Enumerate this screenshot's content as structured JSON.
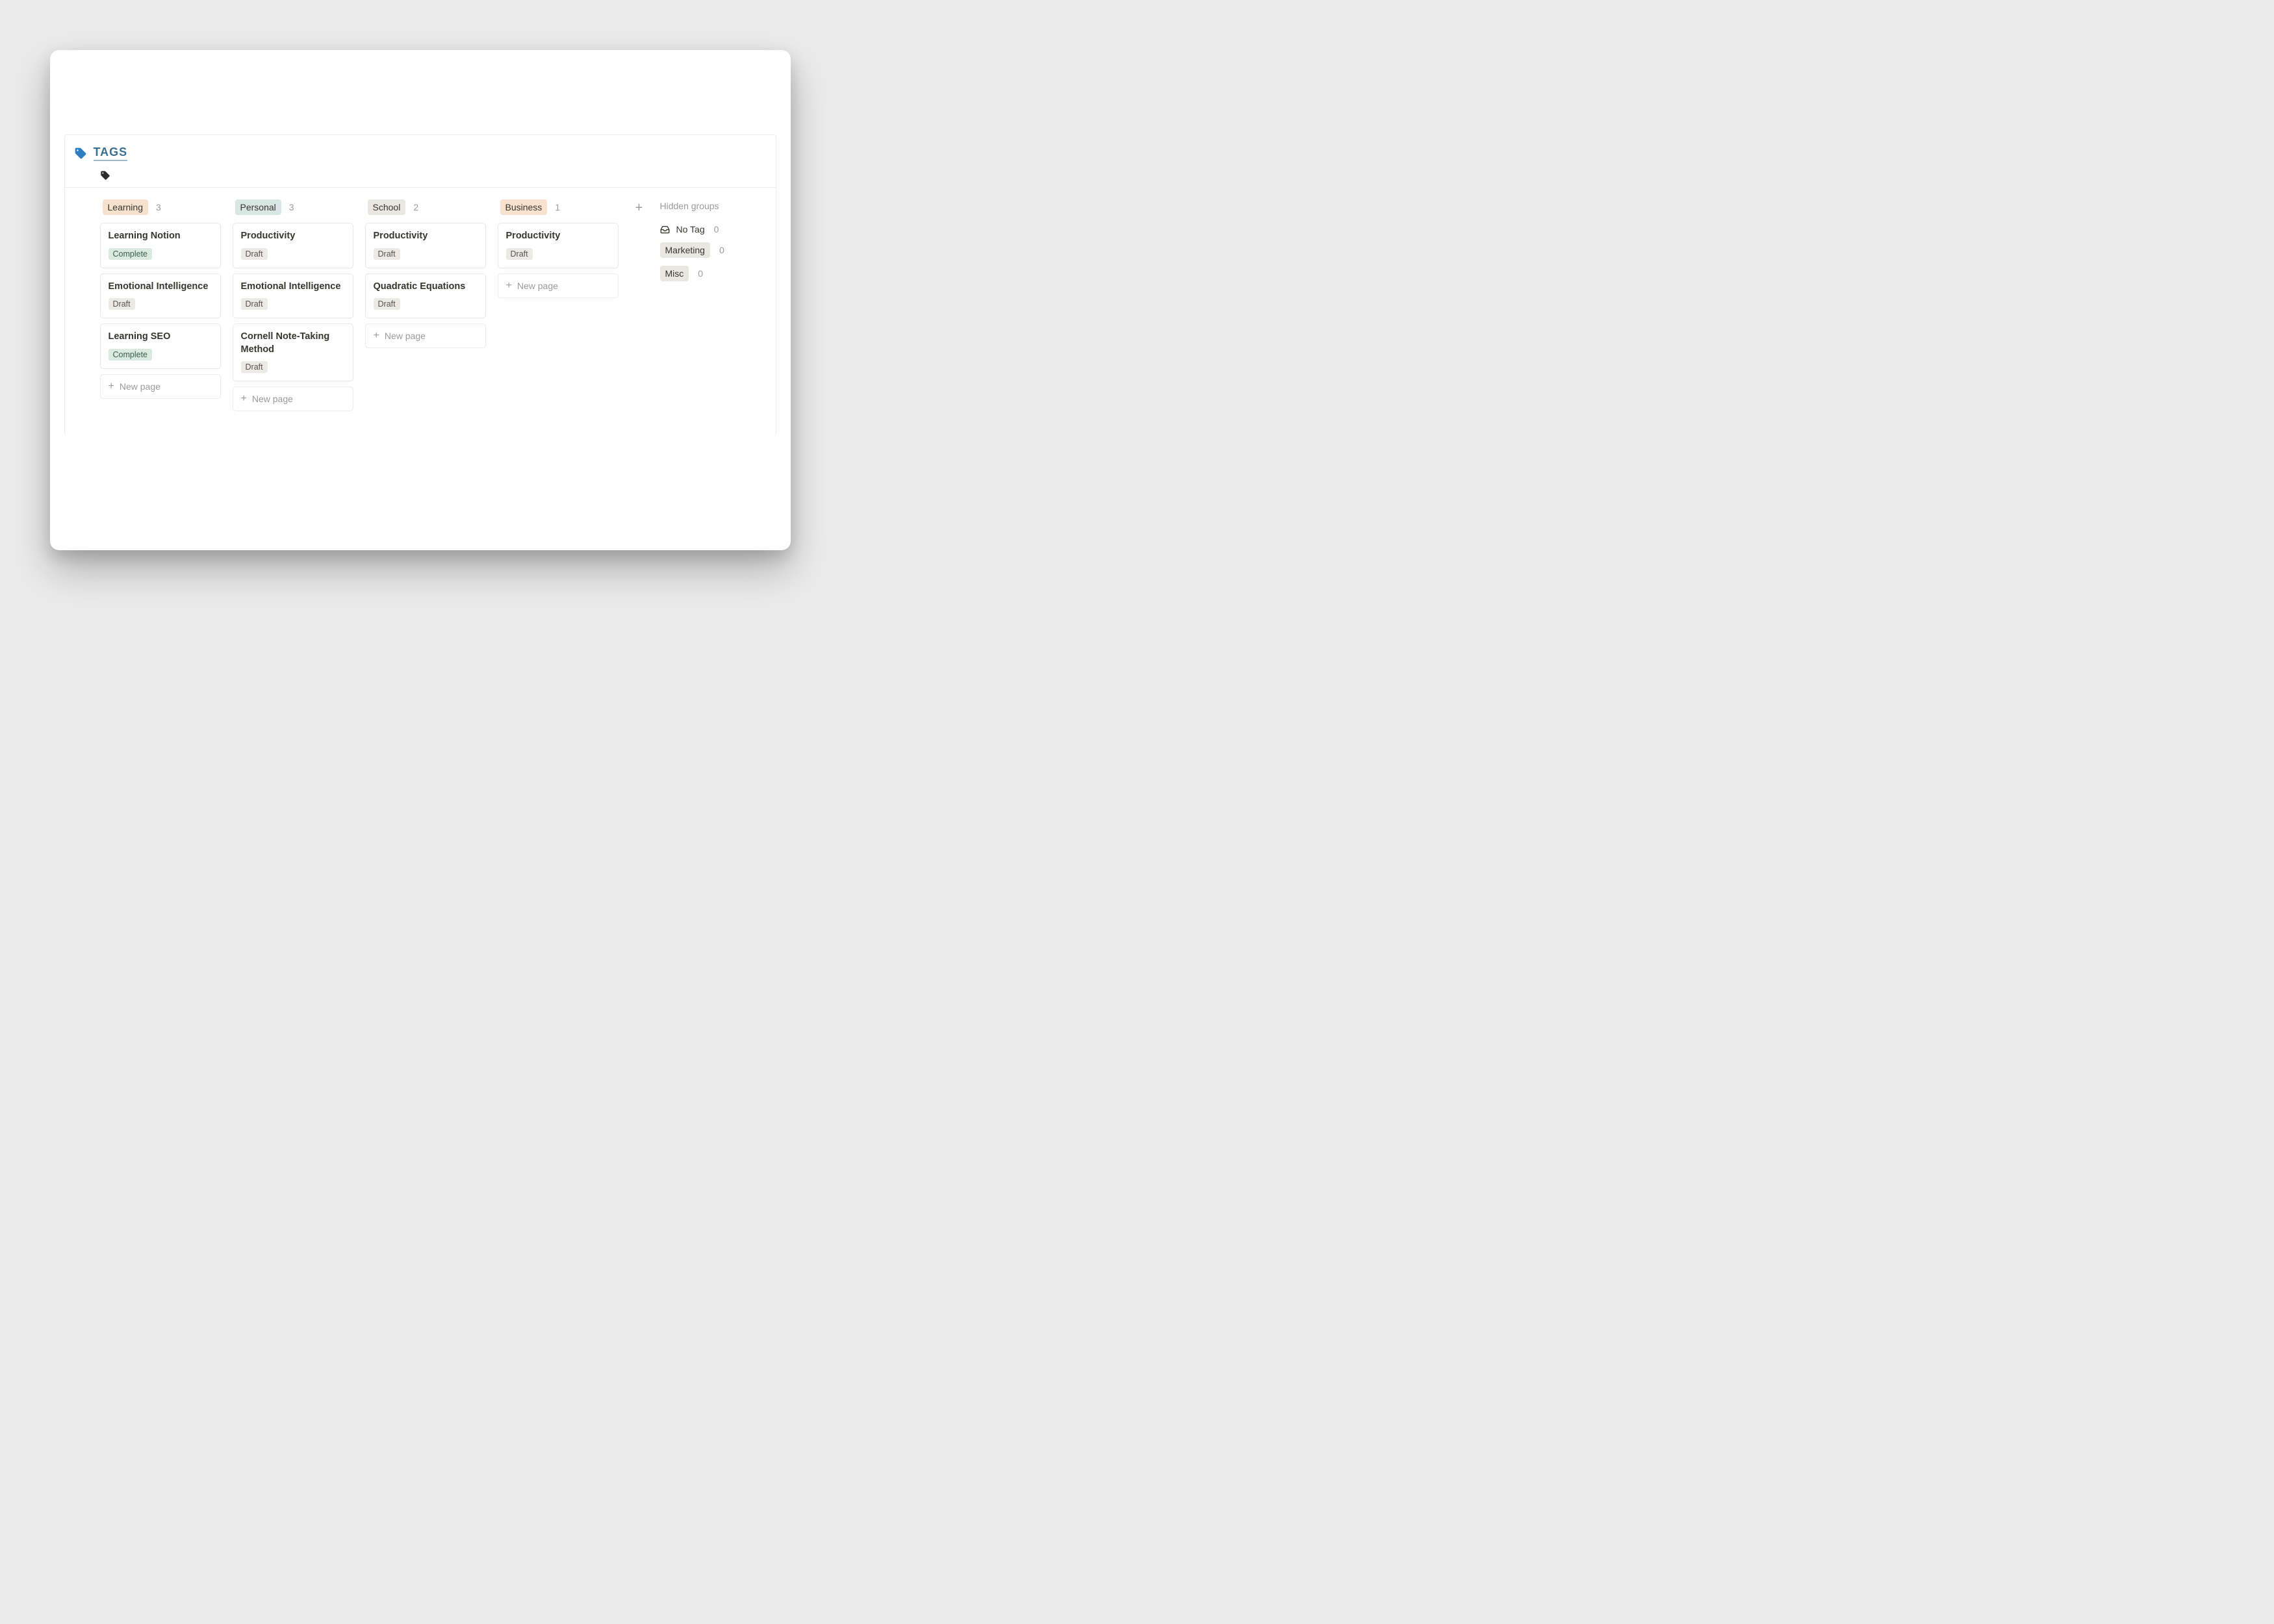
{
  "header": {
    "title": "TAGS",
    "title_color": "#3b6e8f",
    "tag_icon_color": "#2f7cc0",
    "sub_icon_color": "#2b2b2b"
  },
  "status_styles": {
    "Complete": {
      "bg": "#daeae3",
      "fg": "#3d5c50"
    },
    "Draft": {
      "bg": "#eceae6",
      "fg": "#56534c"
    }
  },
  "pill_colors": {
    "Learning": "#f6e1cd",
    "Personal": "#d8e7e3",
    "School": "#e9e7e2",
    "Business": "#f9e2cd",
    "Marketing": "#e9e7e2",
    "Misc": "#e9e7e2"
  },
  "columns": [
    {
      "name": "Learning",
      "count": 3,
      "cards": [
        {
          "title": "Learning Notion",
          "status": "Complete"
        },
        {
          "title": "Emotional Intelligence",
          "status": "Draft"
        },
        {
          "title": "Learning SEO",
          "status": "Complete"
        }
      ]
    },
    {
      "name": "Personal",
      "count": 3,
      "cards": [
        {
          "title": "Productivity",
          "status": "Draft"
        },
        {
          "title": "Emotional Intelligence",
          "status": "Draft"
        },
        {
          "title": "Cornell Note-Taking Method",
          "status": "Draft"
        }
      ]
    },
    {
      "name": "School",
      "count": 2,
      "cards": [
        {
          "title": "Productivity",
          "status": "Draft"
        },
        {
          "title": "Quadratic Equations",
          "status": "Draft"
        }
      ]
    },
    {
      "name": "Business",
      "count": 1,
      "cards": [
        {
          "title": "Productivity",
          "status": "Draft"
        }
      ]
    }
  ],
  "new_page_label": "New page",
  "hidden": {
    "title": "Hidden groups",
    "items": [
      {
        "label": "No Tag",
        "count": 0,
        "no_tag": true
      },
      {
        "label": "Marketing",
        "count": 0
      },
      {
        "label": "Misc",
        "count": 0
      }
    ]
  }
}
